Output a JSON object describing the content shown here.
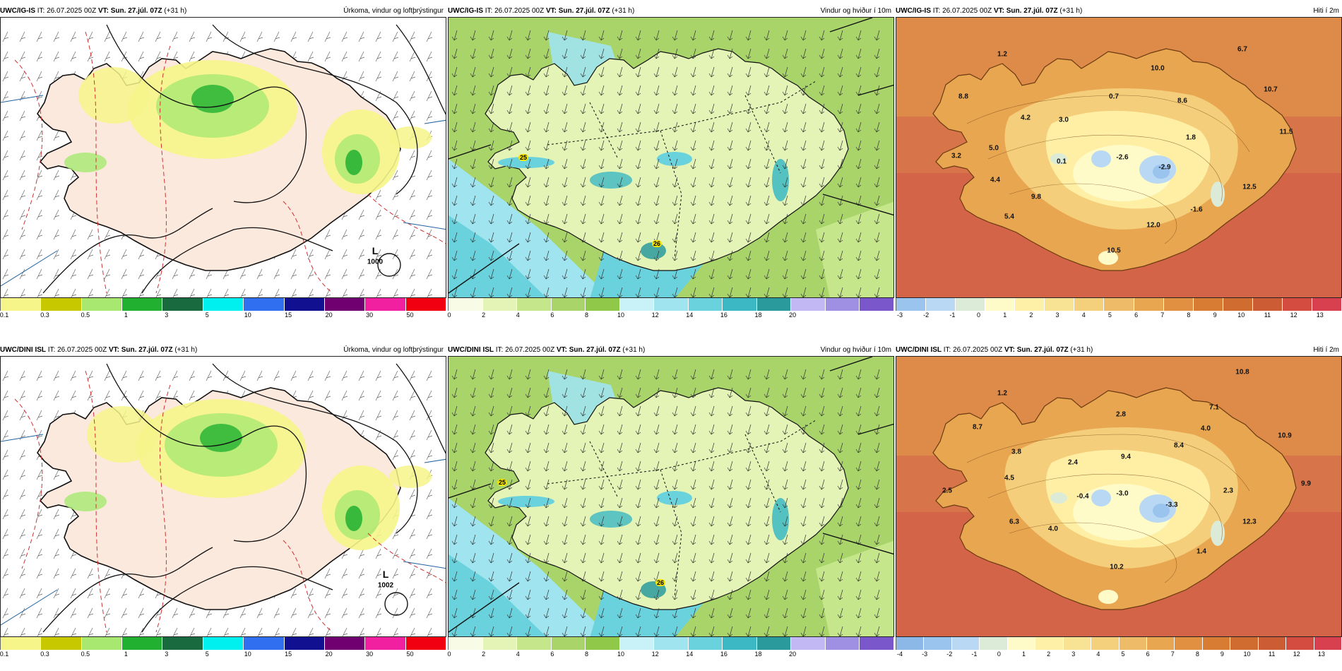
{
  "rows": [
    {
      "model": "UWC/IG-IS",
      "panels": [
        {
          "kind": "precip",
          "it_label": "IT:",
          "it_value": "26.07.2025 00Z",
          "vt_label": "VT:",
          "vt_value": "Sun. 27.júl. 07Z",
          "offset": "(+31 h)",
          "product": "Úrkoma, vindur og loftþrýstingur",
          "low_letter": "L",
          "low_value": "1000"
        },
        {
          "kind": "wind",
          "it_label": "IT:",
          "it_value": "26.07.2025 00Z",
          "vt_label": "VT:",
          "vt_value": "Sun. 27.júl. 07Z",
          "offset": "(+31 h)",
          "product": "Vindur og hviður í 10m",
          "gusts": [
            "25",
            "26"
          ]
        },
        {
          "kind": "temp",
          "it_label": "IT:",
          "it_value": "26.07.2025 00Z",
          "vt_label": "VT:",
          "vt_value": "Sun. 27.júl. 07Z",
          "offset": "(+31 h)",
          "product": "Hiti í 2m",
          "values": [
            "6.7",
            "1.2",
            "10.0",
            "10.7",
            "8.8",
            "0.7",
            "8.6",
            "4.2",
            "3.0",
            "11.5",
            "1.8",
            "5.0",
            "3.2",
            "0.1",
            "-2.6",
            "-2.9",
            "4.4",
            "12.5",
            "9.8",
            "-1.6",
            "5.4",
            "12.0",
            "10.5"
          ]
        }
      ]
    },
    {
      "model": "UWC/DINI ISL",
      "panels": [
        {
          "kind": "precip",
          "it_label": "IT:",
          "it_value": "26.07.2025 00Z",
          "vt_label": "VT:",
          "vt_value": "Sun. 27.júl. 07Z",
          "offset": "(+31 h)",
          "product": "Úrkoma, vindur og loftþrýstingur",
          "low_letter": "L",
          "low_value": "1002"
        },
        {
          "kind": "wind",
          "it_label": "IT:",
          "it_value": "26.07.2025 00Z",
          "vt_label": "VT:",
          "vt_value": "Sun. 27.júl. 07Z",
          "offset": "(+31 h)",
          "product": "Vindur og hviður í 10m",
          "gusts": [
            "25",
            "26"
          ]
        },
        {
          "kind": "temp",
          "it_label": "IT:",
          "it_value": "26.07.2025 00Z",
          "vt_label": "VT:",
          "vt_value": "Sun. 27.júl. 07Z",
          "offset": "(+31 h)",
          "product": "Hiti í 2m",
          "values": [
            "10.8",
            "1.2",
            "7.1",
            "2.8",
            "4.0",
            "8.7",
            "10.9",
            "8.4",
            "3.8",
            "9.4",
            "2.4",
            "4.5",
            "9.9",
            "2.5",
            "2.3",
            "-0.4",
            "-3.0",
            "-3.3",
            "6.3",
            "4.0",
            "12.3",
            "1.4",
            "10.2"
          ]
        }
      ]
    }
  ],
  "legends": {
    "precip": {
      "colors": [
        "#f6f58a",
        "#c8c800",
        "#a8e870",
        "#22b030",
        "#1a6a40",
        "#00f0f0",
        "#3070f0",
        "#101090",
        "#700070",
        "#f020a0",
        "#f00010"
      ],
      "ticks": [
        "0.1",
        "0.3",
        "0.5",
        "1",
        "3",
        "5",
        "10",
        "15",
        "20",
        "30",
        "50"
      ]
    },
    "wind": {
      "colors": [
        "#f8fbe6",
        "#e4f4b6",
        "#c6e68c",
        "#a8d46a",
        "#90c84a",
        "#c8f2f8",
        "#a0e4f0",
        "#6ad2dc",
        "#3cb8c4",
        "#2a9a9c",
        "#c2b8f4",
        "#a090e4",
        "#7a58cc"
      ],
      "ticks": [
        "0",
        "2",
        "4",
        "6",
        "8",
        "10",
        "12",
        "14",
        "16",
        "18",
        "20"
      ]
    },
    "temp_top": {
      "colors": [
        "#9ac4ee",
        "#b8d8f4",
        "#dcebd8",
        "#fffbc8",
        "#fff0a8",
        "#f8e294",
        "#f4d07c",
        "#eebc68",
        "#e8a650",
        "#e09040",
        "#d87c34",
        "#d06c30",
        "#cc5c34",
        "#d44c40",
        "#d84050"
      ],
      "ticks": [
        "-3",
        "-2",
        "-1",
        "0",
        "1",
        "2",
        "3",
        "4",
        "5",
        "6",
        "7",
        "8",
        "9",
        "10",
        "11",
        "12",
        "13"
      ]
    },
    "temp_bottom": {
      "colors": [
        "#8cb8e8",
        "#9ac4ee",
        "#b8d8f4",
        "#dcebd8",
        "#fffbc8",
        "#fff0a8",
        "#f8e294",
        "#f4d07c",
        "#eebc68",
        "#e8a650",
        "#e09040",
        "#d87c34",
        "#d06c30",
        "#cc5c34",
        "#d44c40",
        "#d84050"
      ],
      "ticks": [
        "-4",
        "-3",
        "-2",
        "-1",
        "0",
        "1",
        "2",
        "3",
        "4",
        "5",
        "6",
        "7",
        "8",
        "9",
        "10",
        "11",
        "12",
        "13"
      ]
    }
  }
}
